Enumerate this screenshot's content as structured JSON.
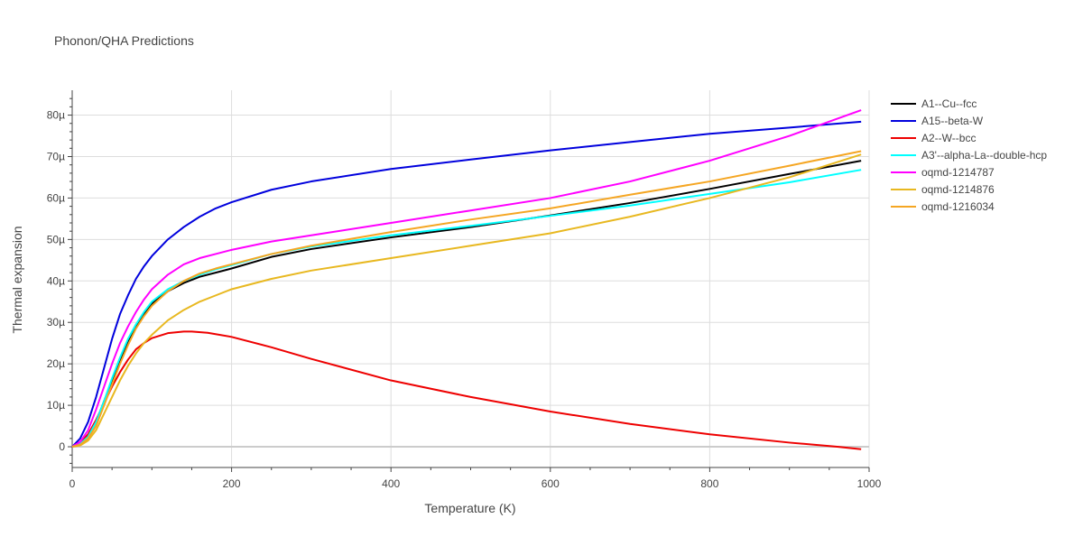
{
  "chart_data": {
    "type": "line",
    "title": "Phonon/QHA Predictions",
    "xlabel": "Temperature (K)",
    "ylabel": "Thermal expansion",
    "xlim": [
      0,
      1000
    ],
    "ylim": [
      -5,
      86
    ],
    "x_ticks": [
      0,
      200,
      400,
      600,
      800,
      1000
    ],
    "y_ticks": [
      0,
      10,
      20,
      30,
      40,
      50,
      60,
      70,
      80
    ],
    "y_tick_labels": [
      "0",
      "10µ",
      "20µ",
      "30µ",
      "40µ",
      "50µ",
      "60µ",
      "70µ",
      "80µ"
    ],
    "grid": true,
    "legend": "right",
    "series": [
      {
        "name": "A1--Cu--fcc",
        "color": "#000000",
        "x": [
          0,
          10,
          20,
          30,
          40,
          50,
          60,
          70,
          80,
          90,
          100,
          120,
          140,
          160,
          180,
          200,
          250,
          300,
          400,
          500,
          600,
          700,
          800,
          900,
          990
        ],
        "y": [
          0,
          0.8,
          2.5,
          6,
          11,
          16,
          21,
          25.5,
          29,
          32,
          34.5,
          37.5,
          39.5,
          41,
          42,
          43,
          45.8,
          47.7,
          50.5,
          53,
          55.8,
          58.8,
          62.2,
          65.8,
          69
        ]
      },
      {
        "name": "A15--beta-W",
        "color": "#0000dd",
        "x": [
          0,
          10,
          20,
          30,
          40,
          50,
          60,
          70,
          80,
          90,
          100,
          120,
          140,
          160,
          180,
          200,
          250,
          300,
          400,
          500,
          600,
          700,
          800,
          900,
          990
        ],
        "y": [
          0,
          2,
          6,
          12,
          19,
          26,
          32,
          36.5,
          40.5,
          43.5,
          46,
          50,
          53,
          55.5,
          57.5,
          59,
          62,
          64,
          67,
          69.3,
          71.5,
          73.5,
          75.5,
          77,
          78.4
        ]
      },
      {
        "name": "A2--W--bcc",
        "color": "#ee0000",
        "x": [
          0,
          10,
          20,
          30,
          40,
          50,
          60,
          70,
          80,
          90,
          100,
          120,
          140,
          150,
          170,
          200,
          250,
          300,
          400,
          500,
          600,
          700,
          800,
          900,
          960,
          990
        ],
        "y": [
          0,
          1,
          3,
          6.5,
          10.5,
          14.5,
          18,
          21,
          23.5,
          25,
          26.2,
          27.4,
          27.8,
          27.8,
          27.5,
          26.5,
          24,
          21.2,
          16,
          12,
          8.5,
          5.5,
          3,
          1,
          0,
          -0.6
        ]
      },
      {
        "name": "A3'--alpha-La--double-hcp",
        "color": "#00ffff",
        "x": [
          0,
          10,
          20,
          30,
          40,
          50,
          60,
          70,
          80,
          90,
          100,
          120,
          140,
          160,
          180,
          200,
          250,
          300,
          400,
          500,
          600,
          700,
          800,
          900,
          990
        ],
        "y": [
          0,
          0.7,
          2.4,
          6,
          11,
          16.5,
          21.5,
          26,
          29.5,
          32.5,
          35,
          38,
          40,
          41.5,
          42.8,
          43.8,
          46.5,
          48.3,
          51,
          53.3,
          55.7,
          58.2,
          61,
          63.8,
          66.8
        ]
      },
      {
        "name": "oqmd-1214787",
        "color": "#ff00ff",
        "x": [
          0,
          10,
          20,
          30,
          40,
          50,
          60,
          70,
          80,
          90,
          100,
          120,
          140,
          160,
          180,
          200,
          250,
          300,
          400,
          500,
          600,
          700,
          800,
          900,
          990
        ],
        "y": [
          0,
          1.2,
          4,
          9,
          14.5,
          20,
          25,
          29,
          32.5,
          35.5,
          38,
          41.5,
          44,
          45.5,
          46.5,
          47.5,
          49.5,
          51,
          54,
          57,
          60,
          64,
          69,
          75,
          81.2
        ]
      },
      {
        "name": "oqmd-1214876",
        "color": "#e8b820",
        "x": [
          0,
          10,
          20,
          30,
          40,
          50,
          60,
          70,
          80,
          90,
          100,
          120,
          140,
          160,
          180,
          200,
          250,
          300,
          400,
          500,
          600,
          700,
          800,
          900,
          990
        ],
        "y": [
          0,
          0.3,
          1.5,
          4,
          8,
          12,
          16,
          19.5,
          22.5,
          25,
          27,
          30.5,
          33,
          35,
          36.5,
          38,
          40.5,
          42.5,
          45.5,
          48.5,
          51.5,
          55.5,
          60,
          65,
          70.5
        ]
      },
      {
        "name": "oqmd-1216034",
        "color": "#f5a623",
        "x": [
          0,
          10,
          20,
          30,
          40,
          50,
          60,
          70,
          80,
          90,
          100,
          120,
          140,
          160,
          180,
          200,
          250,
          300,
          400,
          500,
          600,
          700,
          800,
          900,
          990
        ],
        "y": [
          0,
          0.5,
          2,
          5,
          10,
          15,
          20,
          24.5,
          28.5,
          31.5,
          34,
          37.5,
          40,
          41.8,
          43,
          44,
          46.5,
          48.5,
          51.8,
          54.8,
          57.5,
          60.8,
          64,
          67.8,
          71.3
        ]
      }
    ]
  }
}
